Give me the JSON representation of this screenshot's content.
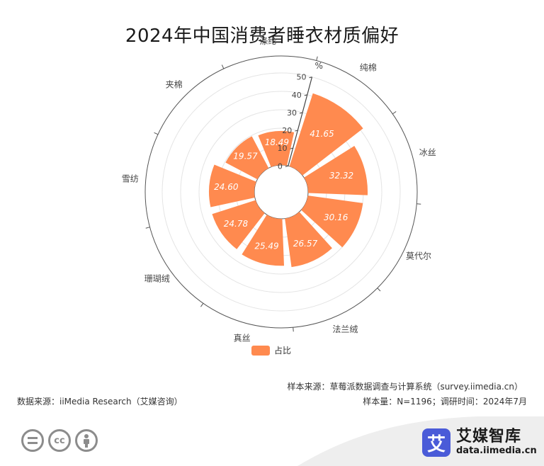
{
  "title": "2024年中国消费者睡衣材质偏好",
  "chart_data": {
    "type": "bar",
    "polar": true,
    "title": "2024年中国消费者睡衣材质偏好",
    "radial_axis_label": "%",
    "radial_ticks": [
      "0",
      "10",
      "20",
      "30",
      "40",
      "50"
    ],
    "rlim": [
      0,
      50
    ],
    "categories": [
      "纯棉",
      "冰丝",
      "莫代尔",
      "法兰绒",
      "真丝",
      "珊瑚绒",
      "雪纺",
      "夹棉",
      "涤纶"
    ],
    "series": [
      {
        "name": "占比",
        "values": [
          41.65,
          32.32,
          30.16,
          26.57,
          25.49,
          24.78,
          24.6,
          19.57,
          18.49
        ],
        "labels": [
          "41.65",
          "32.32",
          "30.16",
          "26.57",
          "25.49",
          "24.78",
          "24.60",
          "19.57",
          "18.49"
        ],
        "color": "#ff8a4f"
      }
    ],
    "legend_position": "bottom"
  },
  "legend": {
    "label": "占比"
  },
  "footer": {
    "sample_source": "样本来源：草莓派数据调查与计算系统（survey.iimedia.cn）",
    "data_source": "数据来源：iiMedia Research（艾媒咨询）",
    "sample_size": "样本量：N=1196；调研时间：2024年7月"
  },
  "brand": {
    "logo_char": "艾",
    "name": "艾媒智库",
    "url": "data.iimedia.cn"
  },
  "license_icons": [
    "equal-icon",
    "cc-icon",
    "person-icon"
  ]
}
